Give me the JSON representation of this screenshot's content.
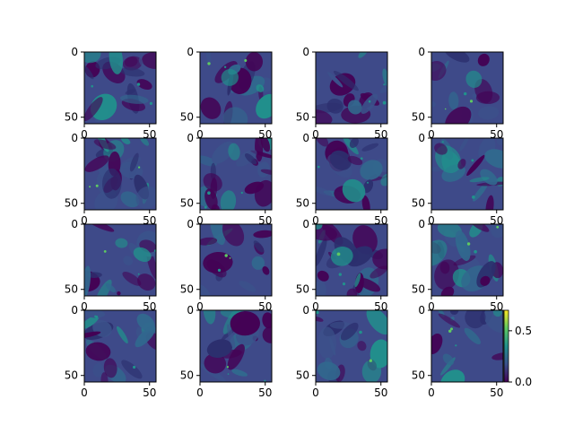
{
  "chart_data": {
    "type": "heatmap",
    "layout": "4x4 grid of feature-map image panels",
    "colormap": "viridis",
    "colors": {
      "background_dark": "#440154",
      "mid_blue": "#3b528b",
      "teal": "#21918c",
      "green": "#5ec962",
      "yellow": "#fde725",
      "panel_bg": "#3e4a89"
    },
    "colorbar": {
      "range": [
        0.0,
        0.7
      ],
      "ticks": [
        0.0,
        0.5
      ],
      "tick_labels": [
        "0.0",
        "0.5"
      ]
    },
    "axes": {
      "x_ticks": [
        0,
        50
      ],
      "x_tick_labels": [
        "0",
        "50"
      ],
      "y_ticks": [
        0,
        50
      ],
      "y_tick_labels": [
        "0",
        "50"
      ],
      "xlim": [
        0,
        55
      ],
      "ylim": [
        55,
        0
      ]
    },
    "panels": [
      {
        "row": 0,
        "col": 0
      },
      {
        "row": 0,
        "col": 1
      },
      {
        "row": 0,
        "col": 2
      },
      {
        "row": 0,
        "col": 3
      },
      {
        "row": 1,
        "col": 0
      },
      {
        "row": 1,
        "col": 1
      },
      {
        "row": 1,
        "col": 2
      },
      {
        "row": 1,
        "col": 3
      },
      {
        "row": 2,
        "col": 0
      },
      {
        "row": 2,
        "col": 1
      },
      {
        "row": 2,
        "col": 2
      },
      {
        "row": 2,
        "col": 3
      },
      {
        "row": 3,
        "col": 0
      },
      {
        "row": 3,
        "col": 1
      },
      {
        "row": 3,
        "col": 2
      },
      {
        "row": 3,
        "col": 3
      }
    ]
  }
}
